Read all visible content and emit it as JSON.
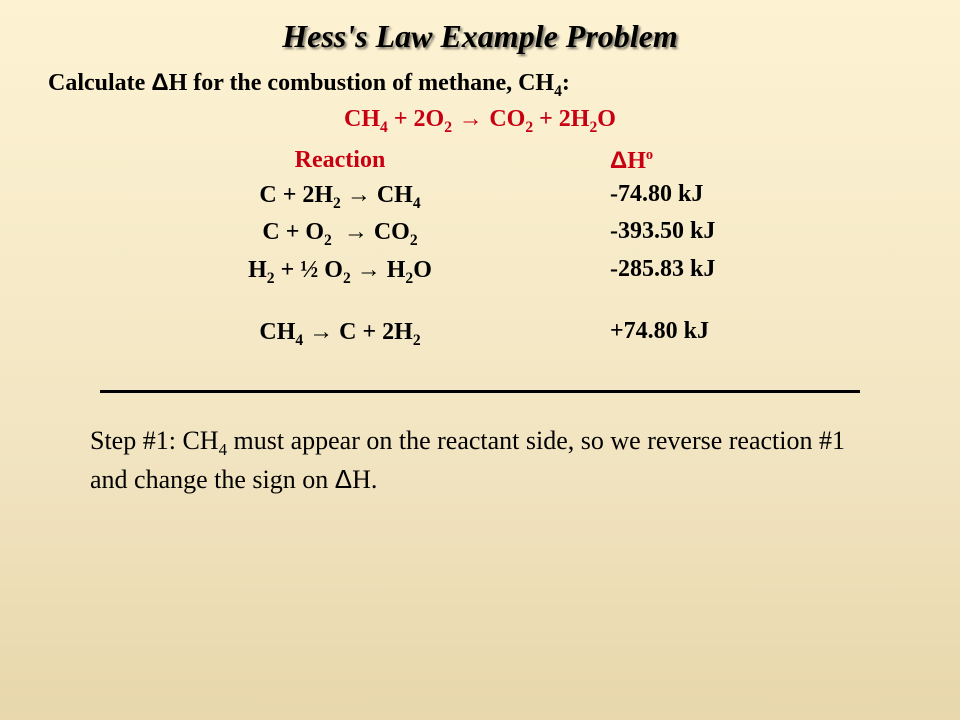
{
  "title": "Hess's Law Example Problem",
  "prompt_pre": "Calculate ",
  "prompt_delta": "Δ",
  "prompt_post1": "H for the combustion of methane, CH",
  "prompt_sub": "4",
  "prompt_colon": ":",
  "target_equation": {
    "lhs1": "CH",
    "lhs1_sub": "4",
    "plus1": " + 2O",
    "o2_sub": "2",
    "arrow": " → ",
    "rhs1": "CO",
    "co2_sub": "2",
    "plus2": " + 2H",
    "h2o_sub": "2",
    "rhs2": "O"
  },
  "headers": {
    "reaction": "Reaction",
    "delta": "Δ",
    "dh": "H",
    "dh_sup": "o"
  },
  "rows": [
    {
      "r": "C + 2H<sub>2</sub> <span class='arrow'>→</span> CH<sub>4</sub>",
      "dh": "-74.80 kJ"
    },
    {
      "r": "C + O<sub>2</sub>&nbsp;&nbsp;<span class='arrow'>→</span> CO<sub>2</sub>",
      "dh": "-393.50 kJ"
    },
    {
      "r": "H<sub>2</sub> + ½ O<sub>2</sub> <span class='arrow'>→</span> H<sub>2</sub>O",
      "dh": "-285.83 kJ"
    }
  ],
  "reversed_row": {
    "r": "CH<sub>4</sub> <span class='arrow'>→</span> C + 2H<sub>2</sub>",
    "dh": "+74.80 kJ"
  },
  "step_text": {
    "t1": "Step #1: CH",
    "sub": "4",
    "t2": " must appear on the reactant side, so we reverse reaction #1 and change the sign on ",
    "delta": "Δ",
    "t3": "H."
  },
  "colors": {
    "red": "#c80012",
    "black": "#000000",
    "bg_top": "#fdf3d3",
    "bg_bottom": "#e8d7ac"
  }
}
